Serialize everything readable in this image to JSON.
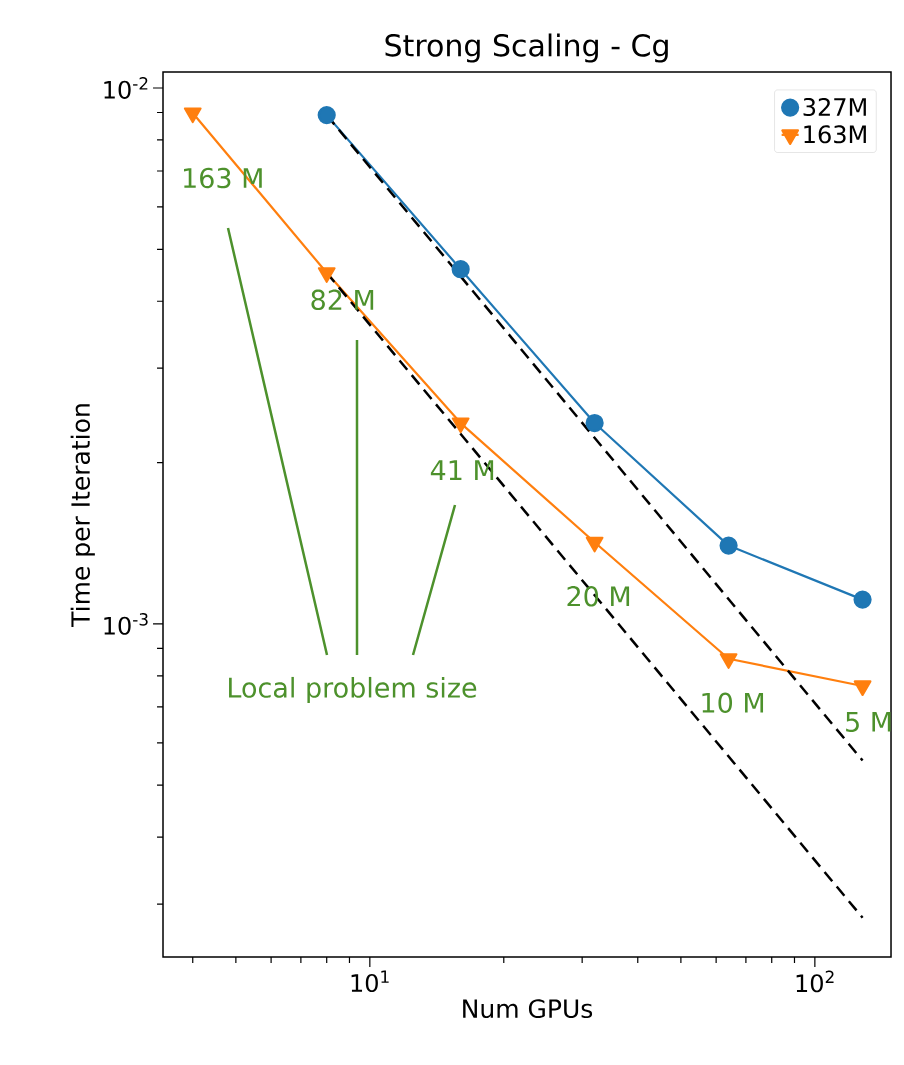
{
  "chart_data": {
    "type": "line",
    "title": "Strong Scaling - Cg",
    "xlabel": "Num GPUs",
    "ylabel": "Time per Iteration",
    "log": "xy",
    "grid": false,
    "legend": "top right",
    "xlim": [
      3.43,
      148.3
    ],
    "ylim": [
      0.000239,
      0.01071
    ],
    "xticks": [
      {
        "value": 10,
        "label": "10$^{1}$"
      },
      {
        "value": 100,
        "label": "10$^{2}$"
      }
    ],
    "yticks": [
      {
        "value": 0.001,
        "label": "10$^{-3}$"
      },
      {
        "value": 0.01,
        "label": "10$^{-2}$"
      }
    ],
    "series": [
      {
        "name": "327M",
        "color": "#1f77b4",
        "marker": "circle",
        "x": [
          8,
          16,
          32,
          64,
          128
        ],
        "values": [
          0.0089,
          0.00459,
          0.00237,
          0.0014,
          0.00111
        ]
      },
      {
        "name": "163M",
        "color": "#ff7f0e",
        "marker": "triangle",
        "x": [
          4,
          8,
          16,
          32,
          64,
          128
        ],
        "values": [
          0.00898,
          0.00452,
          0.00237,
          0.00142,
          0.000861,
          0.000766
        ]
      },
      {
        "color": "#000000",
        "marker": "none",
        "line_style": "dashed",
        "x": [
          8,
          128
        ],
        "values": [
          0.0089,
          0.000556
        ]
      },
      {
        "color": "#000000",
        "marker": "none",
        "line_style": "dashed",
        "x": [
          8,
          128
        ],
        "values": [
          0.00452,
          0.000283
        ]
      }
    ],
    "annotations": [
      {
        "text": "163 M",
        "x": 4,
        "y": 0.00898
      },
      {
        "text": "82 M",
        "x": 8,
        "y": 0.00452
      },
      {
        "text": "41 M",
        "x": 16,
        "y": 0.00237
      },
      {
        "text": "20 M",
        "x": 32,
        "y": 0.00142
      },
      {
        "text": "10 M",
        "x": 64,
        "y": 0.000861
      },
      {
        "text": "5 M",
        "x": 128,
        "y": 0.000766
      },
      "Local problem size"
    ]
  }
}
